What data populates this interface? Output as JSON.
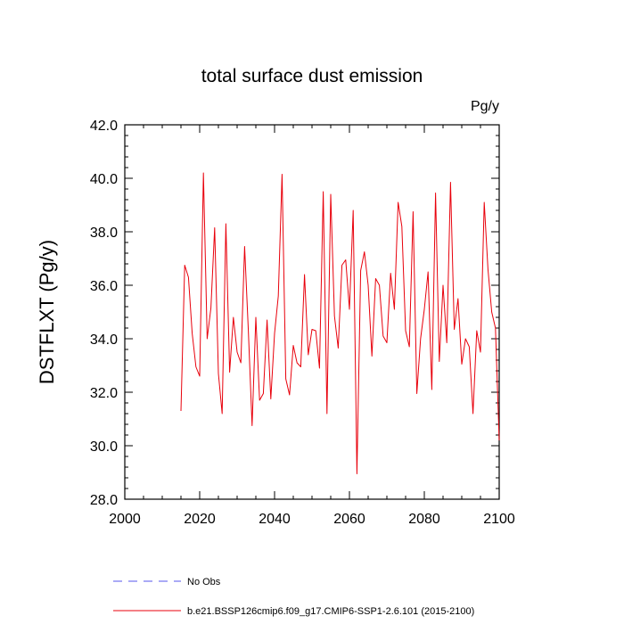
{
  "chart_data": {
    "type": "line",
    "title": "total surface dust emission",
    "units": "Pg/y",
    "ylabel": "DSTFLXT  (Pg/y)",
    "xlabel": "",
    "xlim": [
      2000,
      2100
    ],
    "ylim": [
      28.0,
      42.0
    ],
    "xticks": [
      2000,
      2020,
      2040,
      2060,
      2080,
      2100
    ],
    "xtick_labels": [
      "2000",
      "2020",
      "2040",
      "2060",
      "2080",
      "2100"
    ],
    "yticks": [
      28,
      30,
      32,
      34,
      36,
      38,
      40,
      42
    ],
    "ytick_labels": [
      "28.0",
      "30.0",
      "32.0",
      "34.0",
      "36.0",
      "38.0",
      "40.0",
      "42.0"
    ],
    "series": [
      {
        "name": "b.e21.BSSP126cmip6.f09_g17.CMIP6-SSP1-2.6.101 (2015-2100)",
        "color": "#e8000b",
        "style": "solid",
        "x": [
          2015,
          2016,
          2017,
          2018,
          2019,
          2020,
          2021,
          2022,
          2023,
          2024,
          2025,
          2026,
          2027,
          2028,
          2029,
          2030,
          2031,
          2032,
          2033,
          2034,
          2035,
          2036,
          2037,
          2038,
          2039,
          2040,
          2041,
          2042,
          2043,
          2044,
          2045,
          2046,
          2047,
          2048,
          2049,
          2050,
          2051,
          2052,
          2053,
          2054,
          2055,
          2056,
          2057,
          2058,
          2059,
          2060,
          2061,
          2062,
          2063,
          2064,
          2065,
          2066,
          2067,
          2068,
          2069,
          2070,
          2071,
          2072,
          2073,
          2074,
          2075,
          2076,
          2077,
          2078,
          2079,
          2080,
          2081,
          2082,
          2083,
          2084,
          2085,
          2086,
          2087,
          2088,
          2089,
          2090,
          2091,
          2092,
          2093,
          2094,
          2095,
          2096,
          2097,
          2098,
          2099,
          2100
        ],
        "y": [
          31.3,
          36.75,
          36.3,
          34.2,
          32.95,
          32.6,
          40.2,
          34.0,
          35.15,
          38.15,
          32.7,
          31.2,
          38.3,
          32.75,
          34.8,
          33.5,
          33.1,
          37.45,
          34.3,
          30.75,
          34.8,
          31.7,
          31.95,
          34.7,
          31.75,
          34.2,
          35.6,
          40.15,
          32.5,
          31.9,
          33.75,
          33.1,
          32.95,
          36.4,
          33.4,
          34.35,
          34.3,
          32.9,
          39.5,
          31.2,
          39.4,
          34.85,
          33.65,
          36.75,
          36.95,
          35.1,
          38.8,
          28.95,
          36.55,
          37.25,
          36.0,
          33.35,
          36.25,
          36.0,
          34.1,
          33.85,
          36.45,
          35.1,
          39.1,
          38.2,
          34.3,
          33.7,
          38.75,
          31.95,
          34.0,
          35.1,
          36.5,
          32.1,
          39.45,
          33.15,
          36.0,
          33.85,
          39.85,
          34.35,
          35.5,
          33.05,
          34.0,
          33.7,
          31.2,
          34.3,
          33.5,
          39.1,
          36.6,
          35.0,
          34.4,
          30.2
        ]
      },
      {
        "name": "No Obs",
        "color": "#5555ee",
        "style": "dashed",
        "x": [],
        "y": []
      }
    ],
    "legend": [
      {
        "label": "No Obs",
        "color": "#5555ee",
        "style": "dashed"
      },
      {
        "label": "b.e21.BSSP126cmip6.f09_g17.CMIP6-SSP1-2.6.101 (2015-2100)",
        "color": "#e8000b",
        "style": "solid"
      }
    ],
    "legend_position": "bottom-left",
    "grid": false
  }
}
